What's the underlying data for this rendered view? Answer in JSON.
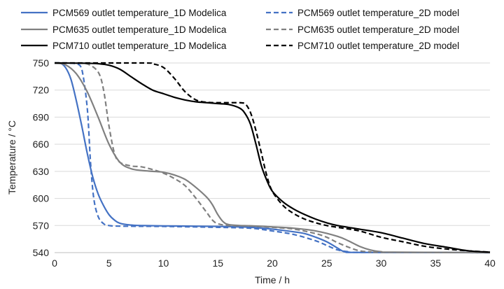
{
  "chart_data": {
    "type": "line",
    "title": "",
    "xlabel": "Time / h",
    "ylabel": "Temperature / °C",
    "xlim": [
      0,
      40
    ],
    "ylim": [
      540,
      750
    ],
    "xticks": [
      0,
      5,
      10,
      15,
      20,
      25,
      30,
      35,
      40
    ],
    "yticks": [
      540,
      570,
      600,
      630,
      660,
      690,
      720,
      750
    ],
    "grid": "horizontal",
    "legend": "top",
    "series": [
      {
        "name": "PCM569 outlet temperature_1D Modelica",
        "color": "#4472C4",
        "dash": "solid",
        "points": [
          [
            0,
            750
          ],
          [
            0.5,
            750
          ],
          [
            1,
            745
          ],
          [
            1.5,
            732
          ],
          [
            2,
            708
          ],
          [
            2.5,
            680
          ],
          [
            3,
            650
          ],
          [
            3.5,
            624
          ],
          [
            4,
            605
          ],
          [
            4.5,
            592
          ],
          [
            5,
            582
          ],
          [
            5.5,
            576
          ],
          [
            6,
            572.5
          ],
          [
            7,
            570.5
          ],
          [
            8,
            570
          ],
          [
            10,
            569.6
          ],
          [
            15,
            569
          ],
          [
            18,
            568
          ],
          [
            20,
            566
          ],
          [
            22,
            563
          ],
          [
            23,
            561
          ],
          [
            24,
            557
          ],
          [
            25,
            552
          ],
          [
            26,
            545
          ],
          [
            26.5,
            541.5
          ],
          [
            27,
            540.5
          ],
          [
            28,
            540.2
          ],
          [
            40,
            540
          ]
        ]
      },
      {
        "name": "PCM569 outlet temperature_2D model",
        "color": "#4472C4",
        "dash": "dashed",
        "points": [
          [
            0,
            750
          ],
          [
            1,
            750
          ],
          [
            2,
            749
          ],
          [
            2.5,
            743
          ],
          [
            3,
            700
          ],
          [
            3.3,
            640
          ],
          [
            3.6,
            600
          ],
          [
            4,
            580
          ],
          [
            4.5,
            572
          ],
          [
            5,
            570
          ],
          [
            6,
            569.3
          ],
          [
            10,
            569
          ],
          [
            15,
            568
          ],
          [
            18,
            567
          ],
          [
            20,
            564
          ],
          [
            22,
            560
          ],
          [
            24,
            553
          ],
          [
            25,
            548
          ],
          [
            26,
            543
          ],
          [
            27,
            541
          ],
          [
            28,
            540.3
          ],
          [
            40,
            540
          ]
        ]
      },
      {
        "name": "PCM635 outlet temperature_1D Modelica",
        "color": "#808080",
        "dash": "solid",
        "points": [
          [
            0,
            750
          ],
          [
            1,
            748
          ],
          [
            2,
            738
          ],
          [
            3,
            718
          ],
          [
            4,
            690
          ],
          [
            5,
            660
          ],
          [
            6,
            640
          ],
          [
            7,
            633
          ],
          [
            8,
            631
          ],
          [
            9,
            630
          ],
          [
            10,
            629
          ],
          [
            11,
            626
          ],
          [
            12,
            621
          ],
          [
            13,
            612
          ],
          [
            14,
            601
          ],
          [
            14.5,
            593
          ],
          [
            15,
            582
          ],
          [
            15.5,
            574
          ],
          [
            16,
            571
          ],
          [
            17,
            570
          ],
          [
            18,
            569.7
          ],
          [
            20,
            568.5
          ],
          [
            22,
            567
          ],
          [
            24,
            564
          ],
          [
            26,
            558
          ],
          [
            27,
            553
          ],
          [
            28,
            547
          ],
          [
            29,
            543
          ],
          [
            30,
            541
          ],
          [
            31,
            540.5
          ],
          [
            40,
            540
          ]
        ]
      },
      {
        "name": "PCM635 outlet temperature_2D model",
        "color": "#808080",
        "dash": "dashed",
        "points": [
          [
            0,
            750
          ],
          [
            2,
            750
          ],
          [
            3,
            749
          ],
          [
            4,
            740
          ],
          [
            4.5,
            720
          ],
          [
            5,
            680
          ],
          [
            5.5,
            650
          ],
          [
            6,
            640
          ],
          [
            7,
            636
          ],
          [
            8,
            635
          ],
          [
            9,
            632
          ],
          [
            10,
            628
          ],
          [
            11,
            622
          ],
          [
            12,
            614
          ],
          [
            13,
            600
          ],
          [
            14,
            584
          ],
          [
            14.5,
            576
          ],
          [
            15,
            572
          ],
          [
            16,
            570
          ],
          [
            18,
            569.5
          ],
          [
            20,
            568
          ],
          [
            22,
            566
          ],
          [
            24,
            561
          ],
          [
            25,
            557
          ],
          [
            26,
            551
          ],
          [
            27,
            546
          ],
          [
            28,
            542
          ],
          [
            29,
            540.8
          ],
          [
            30,
            540.3
          ],
          [
            40,
            540
          ]
        ]
      },
      {
        "name": "PCM710 outlet temperature_1D Modelica",
        "color": "#000000",
        "dash": "solid",
        "points": [
          [
            0,
            750
          ],
          [
            3,
            749.7
          ],
          [
            4,
            749.2
          ],
          [
            5,
            747.5
          ],
          [
            6,
            743
          ],
          [
            7,
            735
          ],
          [
            8,
            727
          ],
          [
            9,
            720
          ],
          [
            10,
            716
          ],
          [
            11,
            712
          ],
          [
            12,
            709
          ],
          [
            13,
            707
          ],
          [
            14,
            706
          ],
          [
            15,
            705
          ],
          [
            16,
            704
          ],
          [
            17,
            700
          ],
          [
            17.5,
            694
          ],
          [
            18,
            682
          ],
          [
            18.5,
            660
          ],
          [
            19,
            636
          ],
          [
            19.5,
            620
          ],
          [
            20,
            608
          ],
          [
            21,
            596
          ],
          [
            22,
            588
          ],
          [
            23,
            582
          ],
          [
            24,
            577
          ],
          [
            25,
            573
          ],
          [
            26,
            570
          ],
          [
            28,
            566
          ],
          [
            30,
            562
          ],
          [
            32,
            556
          ],
          [
            34,
            550
          ],
          [
            36,
            546
          ],
          [
            38,
            542
          ],
          [
            40,
            540.5
          ]
        ]
      },
      {
        "name": "PCM710 outlet temperature_2D model",
        "color": "#000000",
        "dash": "dashed",
        "points": [
          [
            0,
            750
          ],
          [
            8,
            750
          ],
          [
            9,
            749
          ],
          [
            10,
            745
          ],
          [
            11,
            733
          ],
          [
            12,
            718
          ],
          [
            13,
            709
          ],
          [
            14,
            706.5
          ],
          [
            15,
            706
          ],
          [
            16,
            706
          ],
          [
            17,
            706
          ],
          [
            17.5,
            705
          ],
          [
            18,
            695
          ],
          [
            18.5,
            675
          ],
          [
            19,
            650
          ],
          [
            19.5,
            625
          ],
          [
            20,
            608
          ],
          [
            21,
            592
          ],
          [
            22,
            583
          ],
          [
            23,
            577
          ],
          [
            24,
            573
          ],
          [
            25,
            570
          ],
          [
            26,
            568
          ],
          [
            28,
            564
          ],
          [
            30,
            557
          ],
          [
            32,
            552
          ],
          [
            34,
            547
          ],
          [
            36,
            544
          ],
          [
            38,
            542
          ],
          [
            40,
            540.5
          ]
        ]
      }
    ]
  }
}
